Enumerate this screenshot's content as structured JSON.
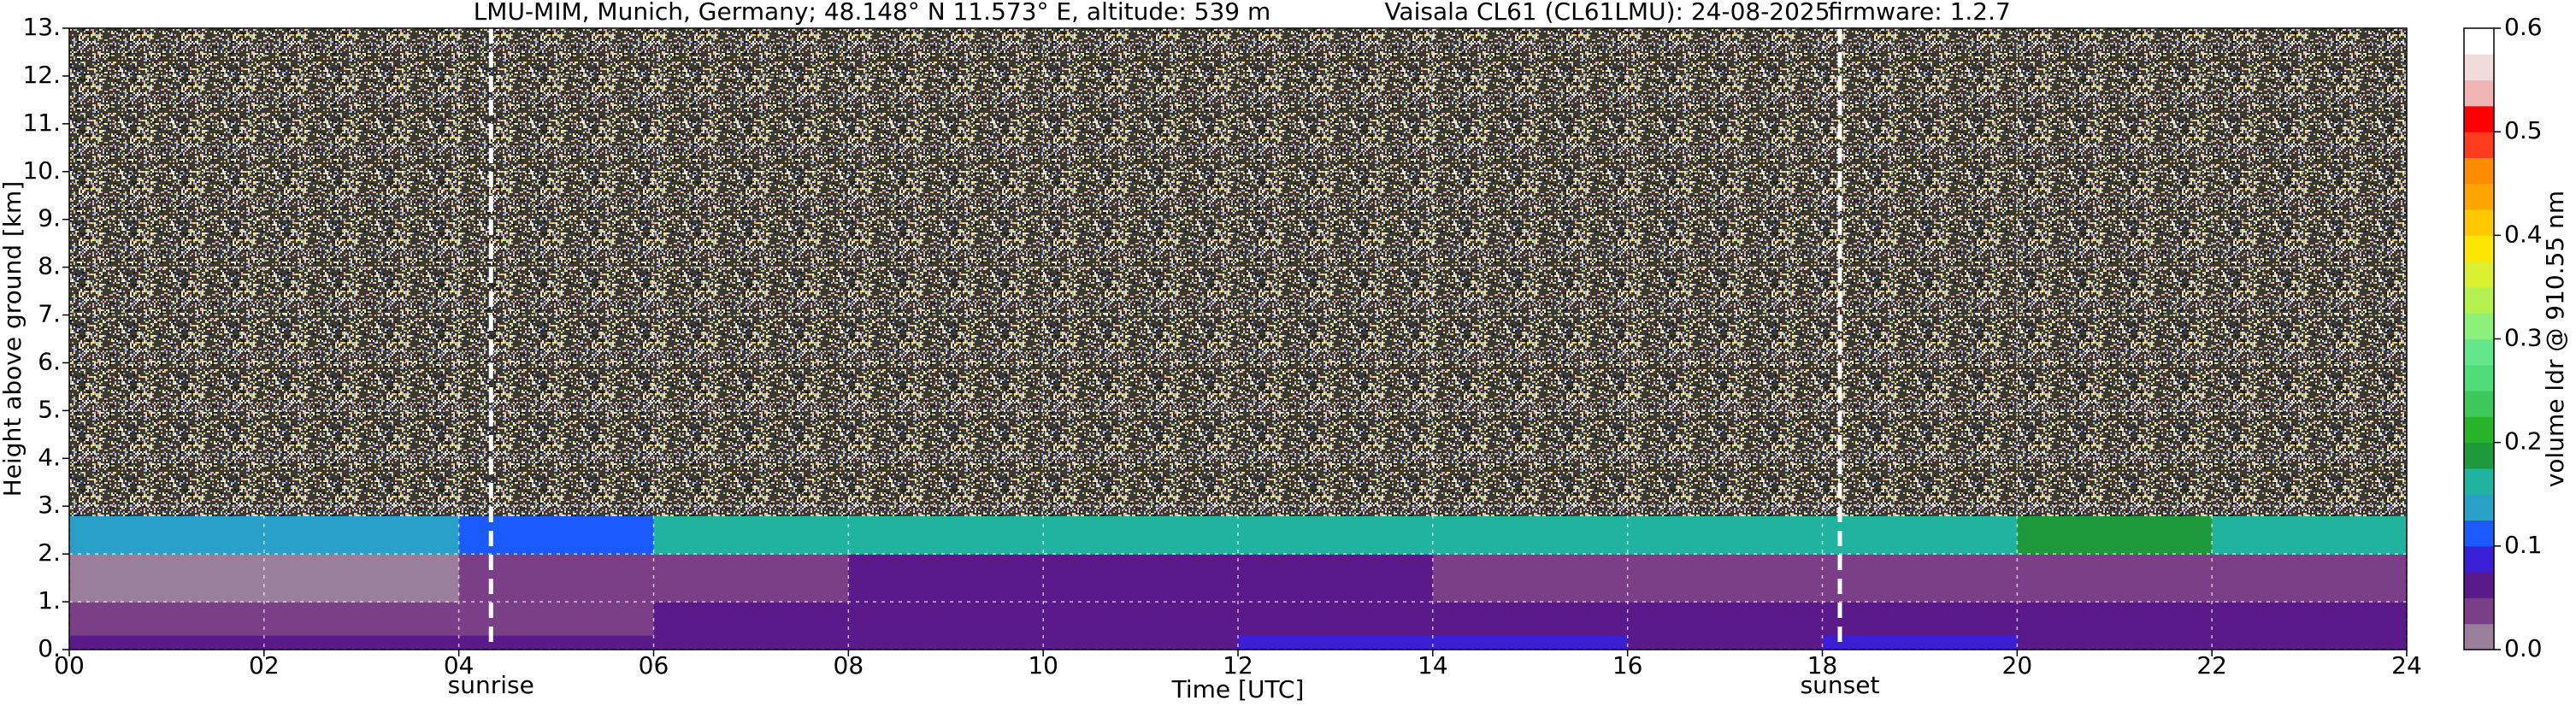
{
  "chart_data": {
    "type": "heatmap",
    "title": [
      "LMU-MIM, Munich, Germany; 48.148° N 11.573° E, altitude: 539 m",
      "Vaisala CL61 (CL61LMU): 24-08-2025",
      "firmware: 1.2.7"
    ],
    "xlabel": "Time [UTC]",
    "ylabel": "Height above ground [km]",
    "xlim": [
      0,
      24
    ],
    "ylim": [
      0,
      13
    ],
    "xticks": [
      {
        "value": 0,
        "label": "00"
      },
      {
        "value": 2,
        "label": "02"
      },
      {
        "value": 4,
        "label": "04"
      },
      {
        "value": 6,
        "label": "06"
      },
      {
        "value": 8,
        "label": "08"
      },
      10,
      12,
      14,
      16,
      18,
      20,
      22,
      24
    ],
    "yticks": [
      {
        "value": 0,
        "label": "0."
      },
      {
        "value": 1,
        "label": "1."
      },
      {
        "value": 2,
        "label": "2."
      },
      {
        "value": 3,
        "label": "3."
      },
      {
        "value": 4,
        "label": "4."
      },
      {
        "value": 5,
        "label": "5."
      },
      {
        "value": 6,
        "label": "6."
      },
      {
        "value": 7,
        "label": "7."
      },
      {
        "value": 8,
        "label": "8."
      },
      {
        "value": 9,
        "label": "9."
      },
      {
        "value": 10,
        "label": "10."
      },
      {
        "value": 11,
        "label": "11."
      },
      {
        "value": 12,
        "label": "12."
      },
      {
        "value": 13,
        "label": "13."
      }
    ],
    "grid": true,
    "x_bins": [
      0,
      2,
      4,
      6,
      8,
      10,
      12,
      14,
      16,
      18,
      20,
      22,
      24
    ],
    "y_bins": [
      0,
      0.3,
      1,
      2,
      2.8,
      13
    ],
    "z": [
      [
        0.06,
        0.06,
        0.06,
        0.07,
        0.07,
        0.07,
        0.08,
        0.08,
        0.07,
        0.08,
        0.07,
        0.07
      ],
      [
        0.03,
        0.03,
        0.04,
        0.05,
        0.06,
        0.06,
        0.07,
        0.07,
        0.06,
        0.07,
        0.06,
        0.06
      ],
      [
        0.02,
        0.02,
        0.03,
        0.04,
        0.05,
        0.05,
        0.05,
        0.04,
        0.04,
        0.03,
        0.03,
        0.03
      ],
      [
        0.14,
        0.13,
        0.12,
        0.16,
        0.15,
        0.17,
        0.16,
        0.15,
        0.15,
        0.17,
        0.18,
        0.17
      ],
      [
        null,
        null,
        null,
        null,
        null,
        null,
        null,
        null,
        null,
        null,
        null,
        null
      ]
    ],
    "colorbar": {
      "label": "volume ldr @ 910.55 nm",
      "lim": [
        0,
        0.6
      ],
      "ticks": [
        {
          "value": 0,
          "label": "0.0"
        },
        0.1,
        0.2,
        0.3,
        0.4,
        0.5,
        0.6
      ],
      "colors": [
        "#9a7e9a",
        "#7a3f86",
        "#5b1a8a",
        "#3a1fd6",
        "#1a5aff",
        "#28a0c8",
        "#20b4a0",
        "#1e9a3c",
        "#28b428",
        "#3cc85a",
        "#50dc78",
        "#64e68c",
        "#8cf07a",
        "#b4f050",
        "#dcf032",
        "#ffe600",
        "#ffc800",
        "#ffa500",
        "#ff8c00",
        "#ff3c1e",
        "#ff0000",
        "#f0b4b4",
        "#f0dcdc",
        "#ffffff"
      ]
    },
    "annotations": [
      {
        "text": "sunrise",
        "x": 4.33
      },
      {
        "text": "sunset",
        "x": 18.18
      }
    ]
  }
}
